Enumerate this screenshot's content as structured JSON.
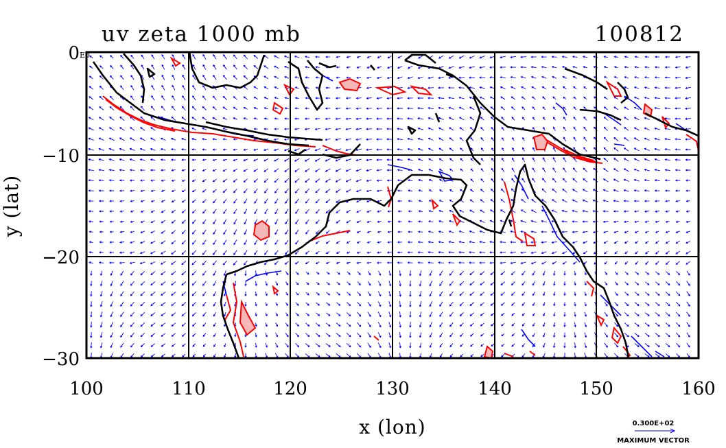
{
  "title": "uv zeta 1000 mb",
  "date_label": "100812",
  "axes": {
    "xlabel": "x (lon)",
    "ylabel": "y (lat)",
    "x_ticks": [
      "100",
      "110",
      "120",
      "130",
      "140",
      "150",
      "160"
    ],
    "y_ticks": [
      "0",
      "−10",
      "−20",
      "−30"
    ],
    "corner_label": "E0"
  },
  "reference_vector": {
    "value_label": "0.300E+02",
    "caption": "MAXIMUM VECTOR"
  },
  "chart_data": {
    "type": "map",
    "xlim": [
      100,
      160
    ],
    "ylim": [
      -30,
      0
    ],
    "grid": true,
    "x_grid": [
      110,
      120,
      130,
      140,
      150
    ],
    "y_grid": [
      -10,
      -20
    ],
    "colors": {
      "coastline": "#000000",
      "wind_vectors": "#0000ff",
      "positive_vorticity": "#ff0000",
      "positive_fill": "#f4b8b8",
      "negative_vorticity": "#0000ff"
    },
    "layers": [
      "coastline",
      "wind vectors (u, v)",
      "relative vorticity contours"
    ]
  }
}
